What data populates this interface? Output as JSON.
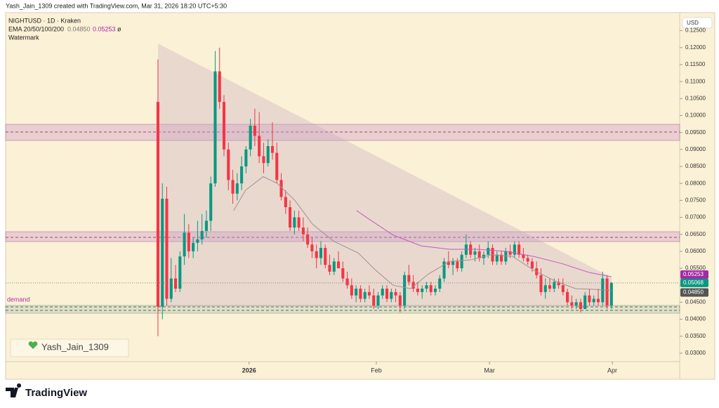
{
  "header": {
    "credit": "Yash_Jain_1309 created with TradingView.com, Mar 31, 2026 18:20 UTC+5:30",
    "symbol": "NIGHTUSD · 1D · Kraken",
    "indicator": "EMA 20/50/100/200",
    "indicator_na": "ø",
    "watermark_title": "Watermark",
    "currency": "USD"
  },
  "watermark": "Yash_Jain_1309",
  "zone_label": "demand",
  "footer": {
    "brand": "TradingView"
  },
  "chart_data": {
    "type": "candlestick",
    "up_color": "#089981",
    "down_color": "#f23645",
    "open": [
      0.104,
      0.0437,
      0.0755,
      0.046,
      0.052,
      0.049,
      0.0585,
      0.0655,
      0.06,
      0.0625,
      0.0635,
      0.066,
      0.069,
      0.08,
      0.113,
      0.104,
      0.09,
      0.081,
      0.077,
      0.08,
      0.085,
      0.09,
      0.097,
      0.094,
      0.088,
      0.086,
      0.091,
      0.089,
      0.081,
      0.076,
      0.073,
      0.067,
      0.07,
      0.067,
      0.065,
      0.062,
      0.06,
      0.058,
      0.061,
      0.056,
      0.054,
      0.057,
      0.055,
      0.052,
      0.05,
      0.047,
      0.049,
      0.046,
      0.048,
      0.047,
      0.044,
      0.047,
      0.049,
      0.046,
      0.048,
      0.047,
      0.044,
      0.053,
      0.051,
      0.049,
      0.048,
      0.049,
      0.05,
      0.048,
      0.049,
      0.052,
      0.057,
      0.056,
      0.057,
      0.055,
      0.059,
      0.062,
      0.059,
      0.06,
      0.058,
      0.059,
      0.061,
      0.057,
      0.059,
      0.057,
      0.06,
      0.059,
      0.062,
      0.059,
      0.058,
      0.057,
      0.055,
      0.053,
      0.048,
      0.05,
      0.049,
      0.051,
      0.05,
      0.048,
      0.045,
      0.044,
      0.045,
      0.043,
      0.047,
      0.045,
      0.046,
      0.045,
      0.052,
      0.044
    ],
    "high": [
      0.1165,
      0.08,
      0.079,
      0.058,
      0.056,
      0.06,
      0.071,
      0.068,
      0.064,
      0.069,
      0.071,
      0.072,
      0.082,
      0.119,
      0.12,
      0.106,
      0.092,
      0.084,
      0.083,
      0.088,
      0.091,
      0.099,
      0.102,
      0.101,
      0.092,
      0.093,
      0.098,
      0.092,
      0.083,
      0.078,
      0.075,
      0.072,
      0.072,
      0.07,
      0.067,
      0.064,
      0.062,
      0.063,
      0.062,
      0.059,
      0.058,
      0.06,
      0.057,
      0.054,
      0.052,
      0.05,
      0.05,
      0.049,
      0.05,
      0.049,
      0.048,
      0.05,
      0.05,
      0.049,
      0.049,
      0.048,
      0.054,
      0.056,
      0.053,
      0.051,
      0.05,
      0.051,
      0.051,
      0.05,
      0.053,
      0.058,
      0.06,
      0.058,
      0.058,
      0.06,
      0.065,
      0.063,
      0.061,
      0.062,
      0.06,
      0.063,
      0.062,
      0.06,
      0.06,
      0.061,
      0.062,
      0.063,
      0.063,
      0.061,
      0.059,
      0.058,
      0.057,
      0.055,
      0.052,
      0.052,
      0.052,
      0.052,
      0.052,
      0.049,
      0.047,
      0.046,
      0.046,
      0.048,
      0.049,
      0.047,
      0.049,
      0.054,
      0.053,
      0.051
    ],
    "low": [
      0.035,
      0.04,
      0.044,
      0.045,
      0.048,
      0.048,
      0.056,
      0.058,
      0.058,
      0.06,
      0.062,
      0.064,
      0.066,
      0.079,
      0.102,
      0.088,
      0.078,
      0.074,
      0.075,
      0.078,
      0.083,
      0.088,
      0.091,
      0.086,
      0.083,
      0.085,
      0.087,
      0.08,
      0.075,
      0.071,
      0.066,
      0.065,
      0.066,
      0.063,
      0.061,
      0.058,
      0.055,
      0.056,
      0.055,
      0.053,
      0.053,
      0.055,
      0.051,
      0.049,
      0.046,
      0.045,
      0.045,
      0.045,
      0.046,
      0.043,
      0.043,
      0.046,
      0.045,
      0.045,
      0.045,
      0.042,
      0.043,
      0.05,
      0.048,
      0.047,
      0.046,
      0.048,
      0.047,
      0.047,
      0.048,
      0.051,
      0.055,
      0.053,
      0.054,
      0.054,
      0.058,
      0.058,
      0.057,
      0.057,
      0.056,
      0.058,
      0.056,
      0.056,
      0.056,
      0.056,
      0.058,
      0.058,
      0.058,
      0.057,
      0.056,
      0.054,
      0.052,
      0.047,
      0.046,
      0.048,
      0.048,
      0.049,
      0.047,
      0.044,
      0.043,
      0.043,
      0.042,
      0.043,
      0.044,
      0.044,
      0.044,
      0.044,
      0.043,
      0.043
    ],
    "close": [
      0.0437,
      0.0755,
      0.046,
      0.052,
      0.049,
      0.0585,
      0.0655,
      0.06,
      0.0625,
      0.0635,
      0.066,
      0.069,
      0.08,
      0.113,
      0.104,
      0.09,
      0.081,
      0.077,
      0.08,
      0.085,
      0.09,
      0.097,
      0.094,
      0.088,
      0.086,
      0.091,
      0.089,
      0.081,
      0.076,
      0.073,
      0.067,
      0.07,
      0.067,
      0.065,
      0.062,
      0.06,
      0.058,
      0.061,
      0.056,
      0.054,
      0.057,
      0.055,
      0.052,
      0.05,
      0.047,
      0.049,
      0.046,
      0.048,
      0.047,
      0.044,
      0.047,
      0.049,
      0.046,
      0.048,
      0.047,
      0.044,
      0.053,
      0.051,
      0.049,
      0.048,
      0.049,
      0.05,
      0.048,
      0.049,
      0.052,
      0.057,
      0.056,
      0.057,
      0.055,
      0.059,
      0.062,
      0.059,
      0.06,
      0.058,
      0.059,
      0.061,
      0.057,
      0.059,
      0.057,
      0.06,
      0.059,
      0.062,
      0.059,
      0.058,
      0.057,
      0.055,
      0.053,
      0.048,
      0.05,
      0.049,
      0.051,
      0.05,
      0.048,
      0.045,
      0.044,
      0.045,
      0.043,
      0.047,
      0.045,
      0.046,
      0.045,
      0.052,
      0.044,
      0.05068
    ],
    "ema": [
      {
        "color": "#a09090",
        "x": [
          17.2,
          19.9,
          23.9,
          27.1,
          31.1,
          35.1,
          39.9,
          45.5,
          49.4,
          53.4,
          57.4,
          61.4,
          66.2,
          71,
          75.8,
          80.5,
          85.3,
          90.1,
          94.9,
          98.9,
          103
        ],
        "values": [
          0.072,
          0.078,
          0.082,
          0.08,
          0.075,
          0.068,
          0.063,
          0.0595,
          0.0545,
          0.05,
          0.049,
          0.0533,
          0.057,
          0.0575,
          0.059,
          0.0585,
          0.0545,
          0.0513,
          0.049,
          0.0488,
          0.0485
        ]
      },
      {
        "color": "#c05ac0",
        "x": [
          45.1,
          48.6,
          53.4,
          59.8,
          66.2,
          72.6,
          79,
          85.3,
          91.7,
          98.1,
          103
        ],
        "values": [
          0.072,
          0.0689,
          0.0648,
          0.0616,
          0.0606,
          0.0606,
          0.06,
          0.0585,
          0.0564,
          0.0537,
          0.05253
        ]
      }
    ],
    "price_labels": [
      {
        "value": 0.05253,
        "label": "0.05253",
        "color": "#a42aa6"
      },
      {
        "value": 0.05068,
        "label": "0.05068",
        "color": "#089981"
      },
      {
        "value": 0.0485,
        "label": "0.04850",
        "color": "#555555"
      }
    ],
    "xlim": [
      -34.6,
      118.5
    ],
    "xticks": [
      {
        "value": 20.7,
        "label": "2026"
      },
      {
        "value": 49.6,
        "label": "Feb"
      },
      {
        "value": 75.3,
        "label": "Mar"
      },
      {
        "value": 103.2,
        "label": "Apr"
      }
    ],
    "ylim": [
      0.0275,
      0.1303
    ],
    "yticks": [
      {
        "value": 0.03,
        "label": "0.03000"
      },
      {
        "value": 0.035,
        "label": "0.03500"
      },
      {
        "value": 0.04,
        "label": "0.04000"
      },
      {
        "value": 0.045,
        "label": "0.04500"
      },
      {
        "value": 0.05,
        "label": "0.05000"
      },
      {
        "value": 0.055,
        "label": "0.05500"
      },
      {
        "value": 0.06,
        "label": "0.06000"
      },
      {
        "value": 0.065,
        "label": "0.06500"
      },
      {
        "value": 0.07,
        "label": "0.07000"
      },
      {
        "value": 0.075,
        "label": "0.07500"
      },
      {
        "value": 0.08,
        "label": "0.08000"
      },
      {
        "value": 0.085,
        "label": "0.08500"
      },
      {
        "value": 0.09,
        "label": "0.09000"
      },
      {
        "value": 0.095,
        "label": "0.09500"
      },
      {
        "value": 0.1,
        "label": "0.10000"
      },
      {
        "value": 0.105,
        "label": "0.10500"
      },
      {
        "value": 0.11,
        "label": "0.11000"
      },
      {
        "value": 0.115,
        "label": "0.11500"
      },
      {
        "value": 0.12,
        "label": "0.12000"
      },
      {
        "value": 0.125,
        "label": "0.12500"
      }
    ]
  }
}
